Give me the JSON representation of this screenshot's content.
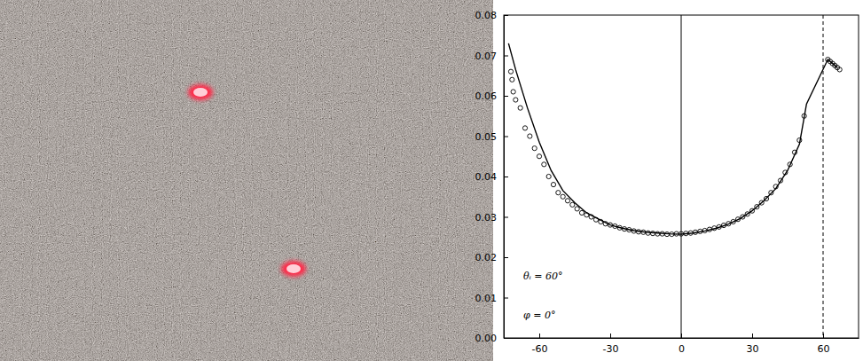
{
  "chart_data": {
    "type": "line",
    "xlim": [
      -75,
      75
    ],
    "xticks": [
      -60,
      -30,
      0,
      30,
      60
    ],
    "ylim": [
      0,
      0.08
    ],
    "yticks": [
      {
        "value": 0,
        "label": "0.00"
      },
      {
        "value": 0.01,
        "label": "0.01"
      },
      {
        "value": 0.02,
        "label": "0.02"
      },
      {
        "value": 0.03,
        "label": "0.03"
      },
      {
        "value": 0.04,
        "label": "0.04"
      },
      {
        "value": 0.05,
        "label": "0.05"
      },
      {
        "value": 0.06,
        "label": "0.06"
      },
      {
        "value": 0.07,
        "label": "0.07"
      },
      {
        "value": 0.08,
        "label": "0.08"
      }
    ],
    "grid": false,
    "annotations": [
      "θᵢ = 60°",
      "φ = 0°"
    ],
    "reference_lines": [
      {
        "x": 0,
        "line_style": "solid"
      },
      {
        "x": 60,
        "line_style": "dashed"
      }
    ],
    "series": [
      {
        "type": "line",
        "color": "#000000",
        "line_style": "solid",
        "x": [
          -73,
          -70,
          -65,
          -60,
          -55,
          -50,
          -45,
          -40,
          -35,
          -30,
          -25,
          -20,
          -15,
          -10,
          -5,
          0,
          5,
          10,
          15,
          20,
          25,
          30,
          35,
          40,
          45,
          50,
          53,
          62,
          63,
          66
        ],
        "values": [
          0.073,
          0.0665,
          0.057,
          0.0485,
          0.0415,
          0.0365,
          0.0335,
          0.031,
          0.0295,
          0.028,
          0.0272,
          0.0266,
          0.0262,
          0.026,
          0.0258,
          0.0257,
          0.026,
          0.0265,
          0.0272,
          0.0282,
          0.0296,
          0.0315,
          0.034,
          0.037,
          0.0415,
          0.048,
          0.058,
          0.069,
          0.0685,
          0.067
        ]
      },
      {
        "type": "scatter",
        "color": "#000000",
        "marker": "open_circle",
        "x": [
          -72,
          -71.5,
          -71,
          -70,
          -68,
          -66,
          -64,
          -62,
          -60,
          -58,
          -56,
          -54,
          -52,
          -50,
          -48,
          -46,
          -44,
          -42,
          -40,
          -38,
          -36,
          -34,
          -32,
          -30,
          -28,
          -26,
          -24,
          -22,
          -20,
          -18,
          -16,
          -14,
          -12,
          -10,
          -8,
          -6,
          -4,
          -2,
          0,
          2,
          4,
          6,
          8,
          10,
          12,
          14,
          16,
          18,
          20,
          22,
          24,
          26,
          28,
          30,
          32,
          34,
          36,
          38,
          40,
          42,
          44,
          46,
          48,
          50,
          52,
          62,
          63,
          64,
          65,
          66,
          67
        ],
        "values": [
          0.066,
          0.064,
          0.061,
          0.059,
          0.057,
          0.052,
          0.05,
          0.047,
          0.045,
          0.043,
          0.04,
          0.038,
          0.036,
          0.035,
          0.034,
          0.033,
          0.032,
          0.031,
          0.0305,
          0.03,
          0.0293,
          0.0288,
          0.0283,
          0.028,
          0.0277,
          0.0273,
          0.027,
          0.0268,
          0.0265,
          0.0263,
          0.0262,
          0.026,
          0.0259,
          0.0258,
          0.0258,
          0.0257,
          0.0257,
          0.0258,
          0.0258,
          0.0259,
          0.026,
          0.0262,
          0.0264,
          0.0266,
          0.0269,
          0.0272,
          0.0275,
          0.0279,
          0.0283,
          0.0288,
          0.0294,
          0.03,
          0.0307,
          0.0315,
          0.0325,
          0.0335,
          0.0345,
          0.036,
          0.0375,
          0.039,
          0.041,
          0.043,
          0.046,
          0.049,
          0.055,
          0.069,
          0.0685,
          0.068,
          0.0675,
          0.067,
          0.0665
        ]
      }
    ]
  }
}
